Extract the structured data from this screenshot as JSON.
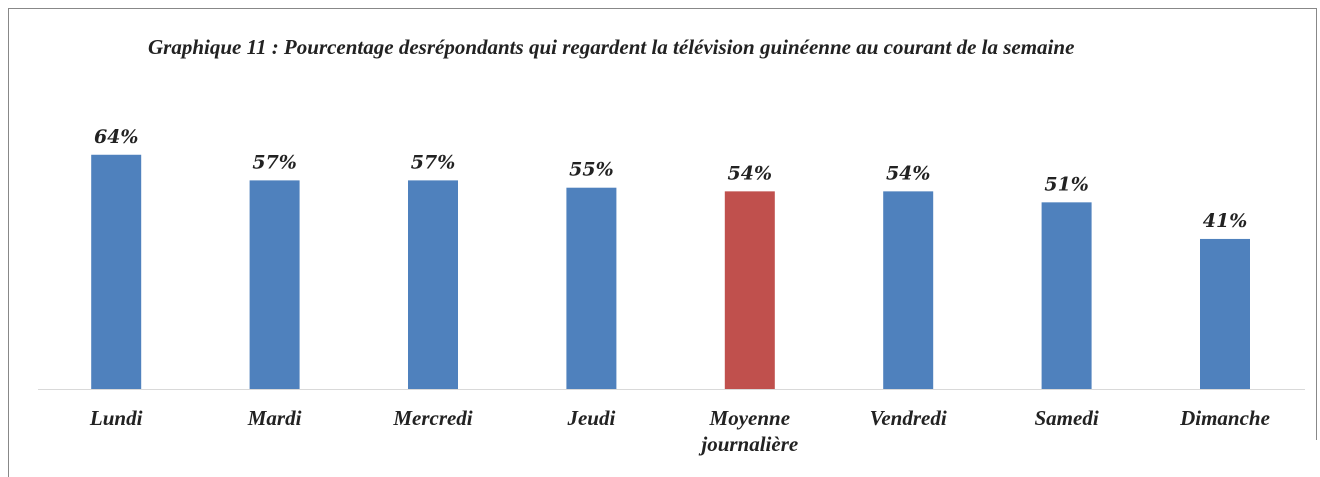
{
  "chart_data": {
    "type": "bar",
    "title": "Graphique 11 : Pourcentage desrépondants qui regardent la télévision guinéenne au courant de la semaine",
    "categories": [
      "Lundi",
      "Mardi",
      "Mercredi",
      "Jeudi",
      "Moyenne journalière",
      "Vendredi",
      "Samedi",
      "Dimanche"
    ],
    "values": [
      64,
      57,
      57,
      55,
      54,
      54,
      51,
      41
    ],
    "value_labels": [
      "64%",
      "57%",
      "57%",
      "55%",
      "54%",
      "54%",
      "51%",
      "41%"
    ],
    "colors": [
      "#4f81bd",
      "#4f81bd",
      "#4f81bd",
      "#4f81bd",
      "#c0504d",
      "#4f81bd",
      "#4f81bd",
      "#4f81bd"
    ]
  }
}
